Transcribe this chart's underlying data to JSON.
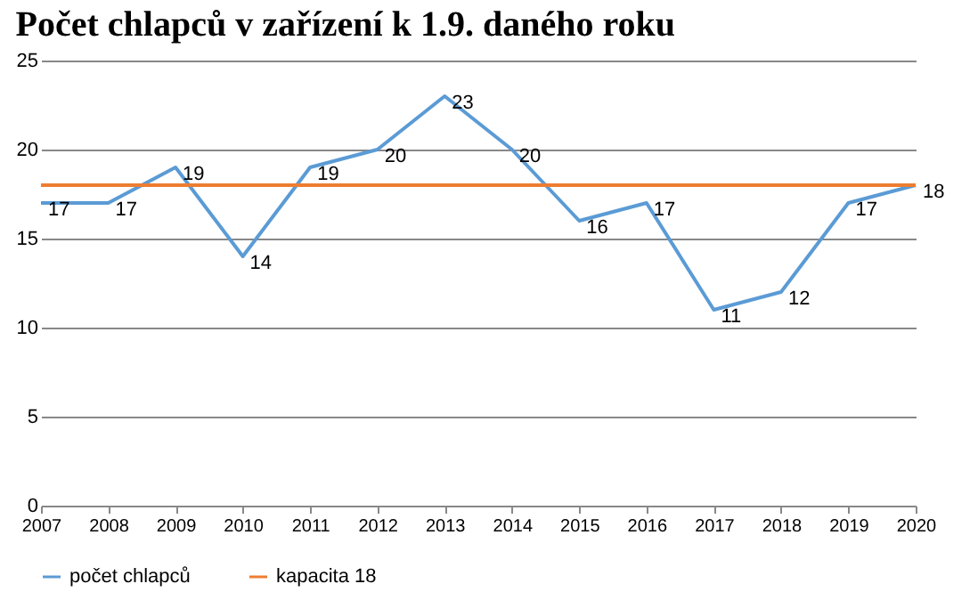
{
  "chart_data": {
    "type": "line",
    "title": "Počet chlapců v zařízení k 1.9. daného roku",
    "x": [
      2007,
      2008,
      2009,
      2010,
      2011,
      2012,
      2013,
      2014,
      2015,
      2016,
      2017,
      2018,
      2019,
      2020
    ],
    "series": [
      {
        "name": "počet chlapců",
        "color": "#5b9bd5",
        "values": [
          17,
          17,
          19,
          14,
          19,
          20,
          23,
          20,
          16,
          17,
          11,
          12,
          17,
          18
        ],
        "value_labels": [
          "17",
          "17",
          "19",
          "14",
          "19",
          "20",
          "23",
          "20",
          "16",
          "17",
          "11",
          "12",
          "17",
          "18"
        ]
      },
      {
        "name": "kapacita 18",
        "color": "#ed7d31",
        "values": [
          18,
          18,
          18,
          18,
          18,
          18,
          18,
          18,
          18,
          18,
          18,
          18,
          18,
          18
        ]
      }
    ],
    "xlim": [
      2007,
      2020
    ],
    "xticks": [
      2007,
      2008,
      2009,
      2010,
      2011,
      2012,
      2013,
      2014,
      2015,
      2016,
      2017,
      2018,
      2019,
      2020
    ],
    "ylim": [
      0,
      25
    ],
    "yticks": [
      0,
      5,
      10,
      15,
      20,
      25
    ],
    "grid": "y",
    "legend": "bottom",
    "marker": "none",
    "line_style": "solid"
  }
}
